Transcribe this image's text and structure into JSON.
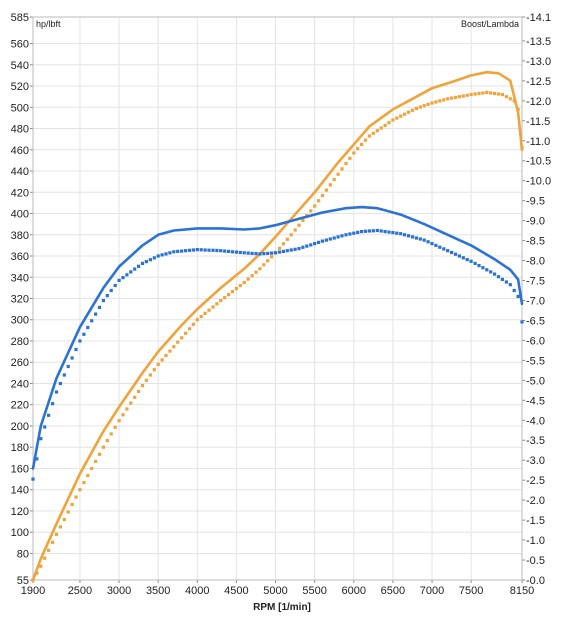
{
  "chart_data": {
    "type": "line",
    "xlabel": "RPM  [1/min]",
    "left_axis_label": "hp/lbft",
    "right_axis_label": "Boost/Lambda",
    "xlim": [
      1900,
      8150
    ],
    "ylim_left": [
      55,
      585
    ],
    "ylim_right": [
      0.0,
      14.1
    ],
    "x_ticks": [
      1900,
      2500,
      3000,
      3500,
      4000,
      4500,
      5000,
      5500,
      6000,
      6500,
      7000,
      7500,
      8150
    ],
    "y_ticks_left": [
      55,
      80,
      100,
      120,
      140,
      160,
      180,
      200,
      220,
      240,
      260,
      280,
      300,
      320,
      340,
      360,
      380,
      400,
      420,
      440,
      460,
      480,
      500,
      520,
      540,
      560,
      585
    ],
    "y_ticks_right": [
      "0.0",
      "0.5",
      "1.0",
      "1.5",
      "2.0",
      "2.5",
      "3.0",
      "3.5",
      "4.0",
      "4.5",
      "5.0",
      "5.5",
      "6.0",
      "6.5",
      "7.0",
      "7.5",
      "8.0",
      "8.5",
      "9.0",
      "9.5",
      "10.0",
      "10.5",
      "11.0",
      "11.5",
      "12.0",
      "12.5",
      "13.0",
      "13.5",
      "14.1"
    ],
    "grid": true,
    "series": [
      {
        "style": "solid",
        "color": "#f2a23a",
        "x": [
          1900,
          2000,
          2200,
          2500,
          2800,
          3000,
          3300,
          3500,
          3800,
          4000,
          4300,
          4600,
          4800,
          5000,
          5200,
          5500,
          5800,
          6000,
          6200,
          6500,
          6800,
          7000,
          7300,
          7500,
          7700,
          7850,
          8000,
          8100,
          8150
        ],
        "y": [
          55,
          75,
          108,
          155,
          195,
          218,
          250,
          270,
          295,
          310,
          330,
          348,
          362,
          378,
          395,
          420,
          448,
          465,
          482,
          498,
          510,
          518,
          525,
          530,
          533,
          532,
          525,
          495,
          460
        ]
      },
      {
        "style": "dotted",
        "color": "#f2a23a",
        "x": [
          1900,
          2000,
          2200,
          2500,
          2800,
          3000,
          3300,
          3500,
          3800,
          4000,
          4300,
          4600,
          4800,
          5000,
          5200,
          5500,
          5800,
          6000,
          6200,
          6500,
          6800,
          7000,
          7200,
          7500,
          7700,
          7900,
          8050,
          8100,
          8150
        ],
        "y": [
          55,
          68,
          98,
          140,
          180,
          205,
          238,
          258,
          283,
          300,
          318,
          335,
          348,
          363,
          380,
          407,
          437,
          457,
          473,
          488,
          499,
          504,
          508,
          512,
          514,
          512,
          506,
          498,
          462
        ]
      },
      {
        "style": "solid",
        "color": "#2a72d6",
        "x": [
          1900,
          2000,
          2200,
          2500,
          2800,
          3000,
          3300,
          3500,
          3700,
          4000,
          4300,
          4600,
          4800,
          5000,
          5300,
          5600,
          5900,
          6100,
          6300,
          6600,
          6900,
          7200,
          7500,
          7800,
          8000,
          8100,
          8150
        ],
        "y": [
          160,
          200,
          245,
          293,
          330,
          350,
          370,
          380,
          384,
          386,
          386,
          385,
          386,
          389,
          395,
          401,
          405,
          406,
          405,
          399,
          390,
          380,
          370,
          357,
          347,
          338,
          315
        ]
      },
      {
        "style": "dotted",
        "color": "#2a72d6",
        "x": [
          1900,
          2000,
          2200,
          2500,
          2800,
          3000,
          3300,
          3500,
          3700,
          4000,
          4300,
          4600,
          4800,
          5000,
          5300,
          5600,
          5900,
          6100,
          6300,
          6600,
          6900,
          7200,
          7500,
          7800,
          8000,
          8100,
          8150
        ],
        "y": [
          150,
          188,
          232,
          280,
          318,
          337,
          353,
          360,
          364,
          366,
          365,
          363,
          362,
          363,
          367,
          374,
          380,
          383,
          384,
          381,
          375,
          365,
          355,
          343,
          333,
          322,
          298
        ]
      }
    ]
  }
}
